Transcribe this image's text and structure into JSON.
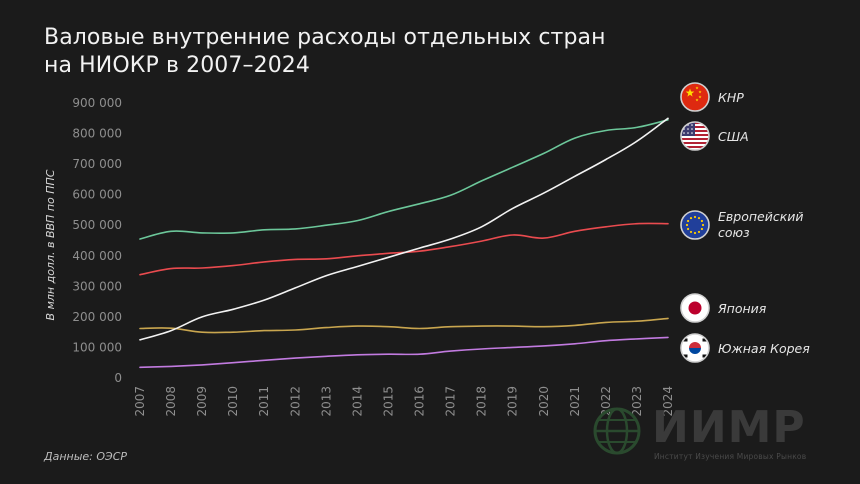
{
  "header": {
    "title_line1": "Валовые внутренние расходы отдельных стран",
    "title_line2": "на НИОКР в 2007–2024"
  },
  "source": "Данные: ОЭСР",
  "brand": {
    "name": "ИИМР",
    "subtitle": "Институт Изучения Мировых Рынков"
  },
  "chart_data": {
    "type": "line",
    "title": "Валовые внутренние расходы отдельных стран на НИОКР в 2007–2024",
    "ylabel": "В млн долл. в ВВП по ППС",
    "xlabel": "",
    "ylim": [
      0,
      900000
    ],
    "yticks": [
      0,
      100000,
      200000,
      300000,
      400000,
      500000,
      600000,
      700000,
      800000,
      900000
    ],
    "ytick_labels": [
      "0",
      "100 000",
      "200 000",
      "300 000",
      "400 000",
      "500 000",
      "600 000",
      "700 000",
      "800 000",
      "900 000"
    ],
    "x": [
      "2007",
      "2008",
      "2009",
      "2010",
      "2011",
      "2012",
      "2013",
      "2014",
      "2015",
      "2016",
      "2017",
      "2018",
      "2019",
      "2020",
      "2021",
      "2022",
      "2023",
      "2024"
    ],
    "grid": false,
    "legend": "right",
    "series": [
      {
        "name": "КНР",
        "color": "#f2f2f2",
        "flag": "china-flag-icon",
        "values": [
          125000,
          155000,
          200000,
          225000,
          255000,
          295000,
          335000,
          365000,
          395000,
          425000,
          455000,
          495000,
          555000,
          605000,
          660000,
          715000,
          775000,
          850000
        ]
      },
      {
        "name": "США",
        "color": "#6cc79a",
        "flag": "usa-flag-icon",
        "values": [
          455000,
          480000,
          475000,
          475000,
          485000,
          488000,
          500000,
          515000,
          545000,
          570000,
          598000,
          645000,
          690000,
          735000,
          785000,
          810000,
          820000,
          845000
        ]
      },
      {
        "name": "Европейский союз",
        "color": "#ea4b4f",
        "flag": "eu-flag-icon",
        "values": [
          338000,
          358000,
          360000,
          368000,
          380000,
          388000,
          390000,
          400000,
          408000,
          415000,
          430000,
          448000,
          468000,
          458000,
          480000,
          495000,
          505000,
          505000
        ]
      },
      {
        "name": "Япония",
        "color": "#c9a64f",
        "flag": "japan-flag-icon",
        "values": [
          162000,
          163000,
          150000,
          150000,
          155000,
          157000,
          165000,
          170000,
          168000,
          162000,
          168000,
          170000,
          170000,
          168000,
          172000,
          182000,
          186000,
          195000
        ]
      },
      {
        "name": "Южная Корея",
        "color": "#c27be0",
        "flag": "korea-flag-icon",
        "values": [
          35000,
          38000,
          43000,
          50000,
          58000,
          65000,
          71000,
          76000,
          78000,
          78000,
          88000,
          95000,
          100000,
          105000,
          112000,
          122000,
          128000,
          133000
        ]
      }
    ]
  }
}
